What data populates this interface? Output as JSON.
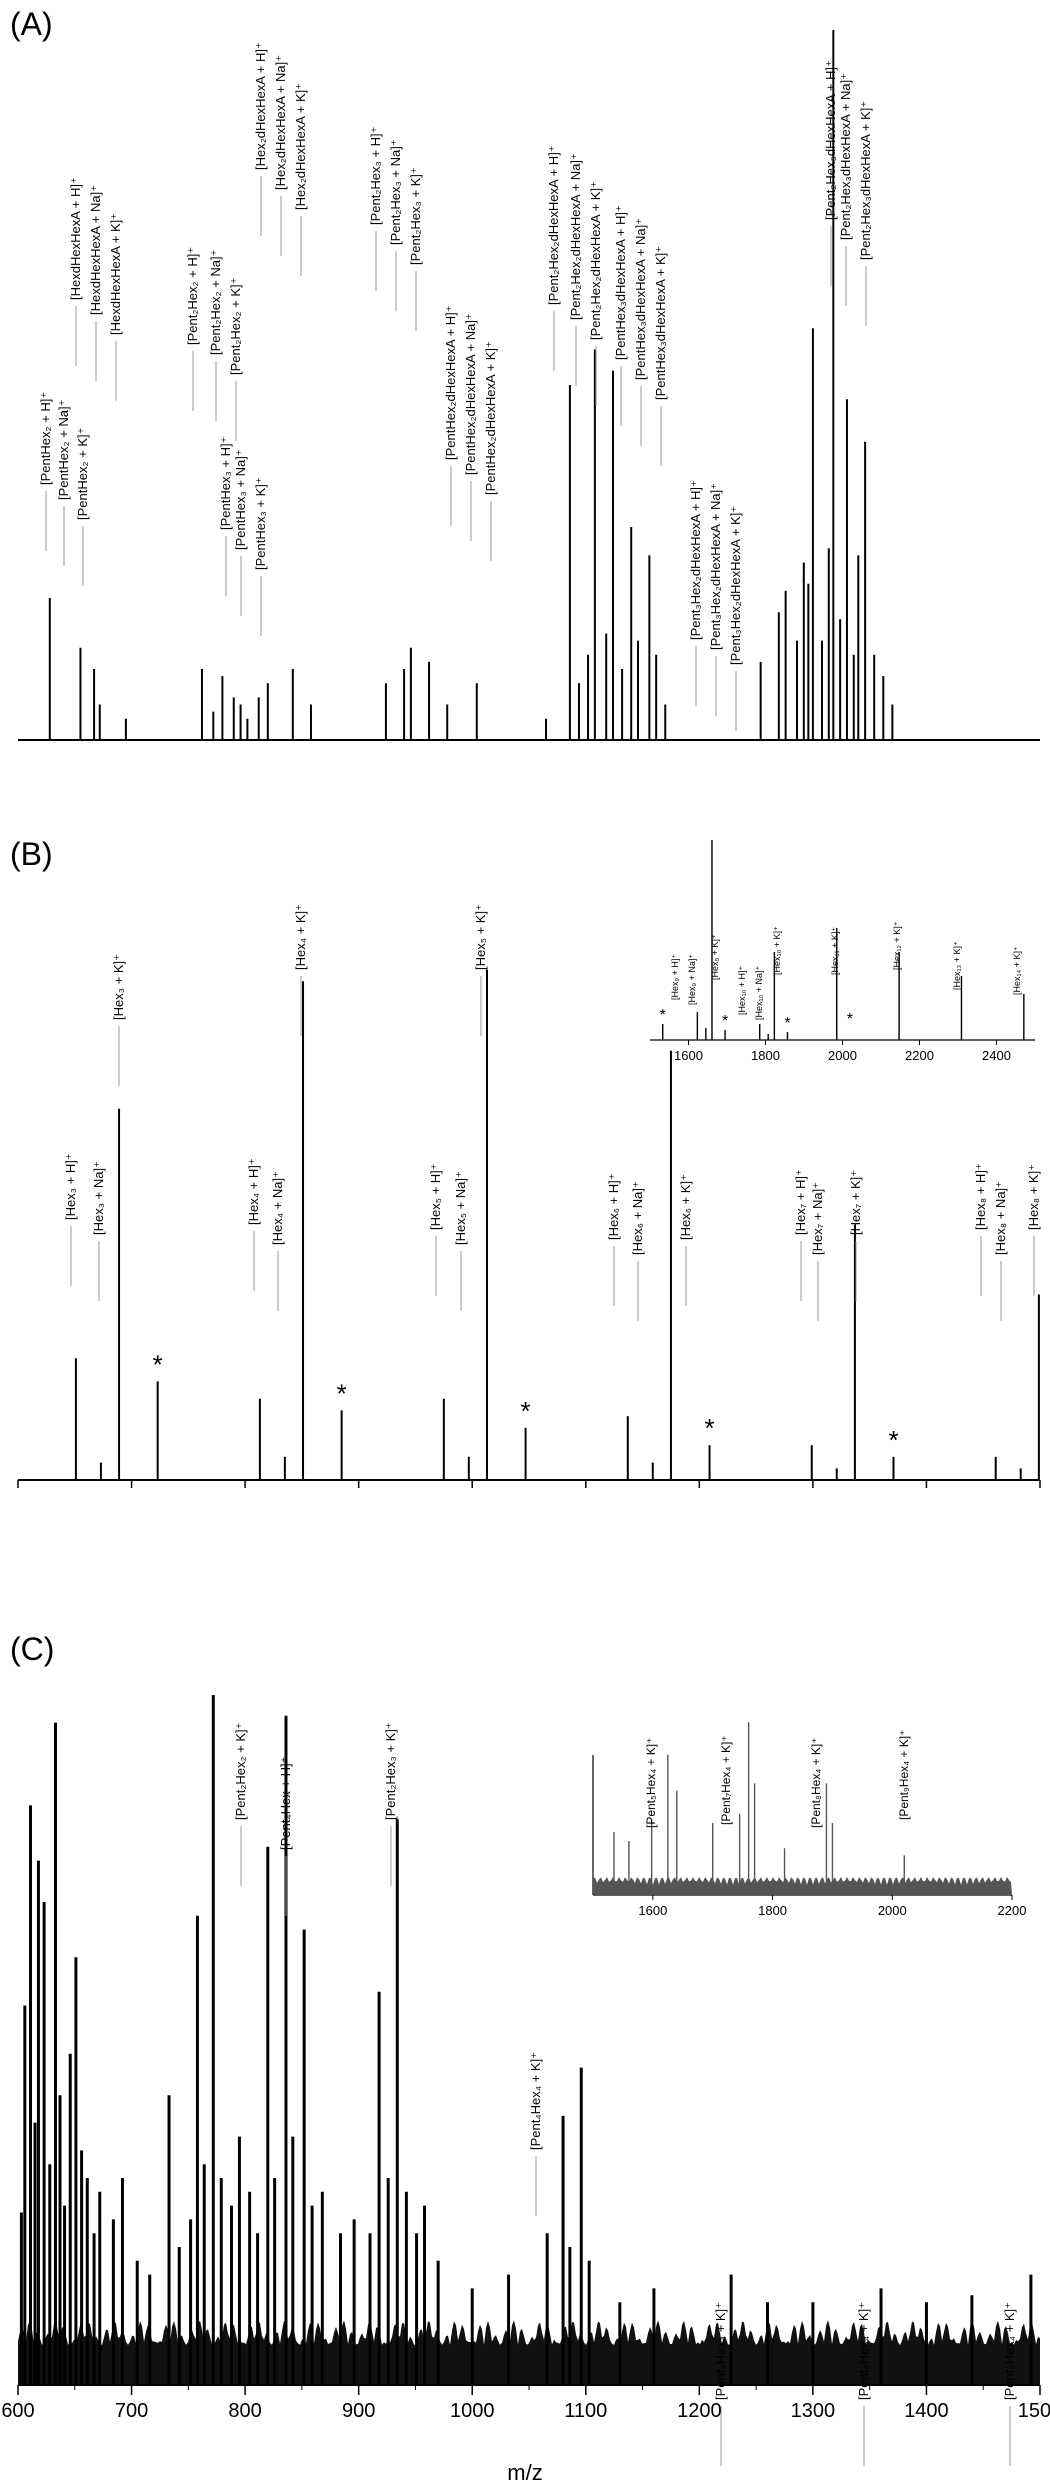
{
  "figure": {
    "xlabel": "m/z",
    "x_range": [
      600,
      1500
    ],
    "x_ticks": [
      600,
      700,
      800,
      900,
      1000,
      1100,
      1200,
      1300,
      1400,
      1500
    ]
  },
  "colors": {
    "spectrum": "#000000",
    "inset_C": "#555555",
    "leader": "#999999"
  },
  "chart_data": [
    {
      "panel": "(A)",
      "type": "bar",
      "xlim": [
        600,
        1500
      ],
      "peaks": [
        {
          "x": 628,
          "y": 0.2
        },
        {
          "x": 655,
          "y": 0.13
        },
        {
          "x": 667,
          "y": 0.1
        },
        {
          "x": 672,
          "y": 0.05
        },
        {
          "x": 695,
          "y": 0.03
        },
        {
          "x": 762,
          "y": 0.1
        },
        {
          "x": 772,
          "y": 0.04
        },
        {
          "x": 780,
          "y": 0.09
        },
        {
          "x": 790,
          "y": 0.06
        },
        {
          "x": 796,
          "y": 0.05
        },
        {
          "x": 802,
          "y": 0.03
        },
        {
          "x": 812,
          "y": 0.06
        },
        {
          "x": 820,
          "y": 0.08
        },
        {
          "x": 842,
          "y": 0.1
        },
        {
          "x": 858,
          "y": 0.05
        },
        {
          "x": 924,
          "y": 0.08
        },
        {
          "x": 940,
          "y": 0.1
        },
        {
          "x": 946,
          "y": 0.13
        },
        {
          "x": 962,
          "y": 0.11
        },
        {
          "x": 978,
          "y": 0.05
        },
        {
          "x": 1004,
          "y": 0.08
        },
        {
          "x": 1065,
          "y": 0.03
        },
        {
          "x": 1086,
          "y": 0.5
        },
        {
          "x": 1094,
          "y": 0.08
        },
        {
          "x": 1102,
          "y": 0.12
        },
        {
          "x": 1108,
          "y": 0.55
        },
        {
          "x": 1118,
          "y": 0.15
        },
        {
          "x": 1124,
          "y": 0.52
        },
        {
          "x": 1132,
          "y": 0.1
        },
        {
          "x": 1140,
          "y": 0.3
        },
        {
          "x": 1146,
          "y": 0.14
        },
        {
          "x": 1156,
          "y": 0.26
        },
        {
          "x": 1162,
          "y": 0.12
        },
        {
          "x": 1170,
          "y": 0.05
        },
        {
          "x": 1254,
          "y": 0.11
        },
        {
          "x": 1270,
          "y": 0.18
        },
        {
          "x": 1276,
          "y": 0.21
        },
        {
          "x": 1286,
          "y": 0.14
        },
        {
          "x": 1292,
          "y": 0.25
        },
        {
          "x": 1296,
          "y": 0.22
        },
        {
          "x": 1300,
          "y": 0.58
        },
        {
          "x": 1308,
          "y": 0.14
        },
        {
          "x": 1314,
          "y": 0.27
        },
        {
          "x": 1318,
          "y": 1.0
        },
        {
          "x": 1324,
          "y": 0.17
        },
        {
          "x": 1330,
          "y": 0.48
        },
        {
          "x": 1336,
          "y": 0.12
        },
        {
          "x": 1340,
          "y": 0.26
        },
        {
          "x": 1346,
          "y": 0.42
        },
        {
          "x": 1354,
          "y": 0.12
        },
        {
          "x": 1362,
          "y": 0.09
        },
        {
          "x": 1370,
          "y": 0.05
        }
      ],
      "labels": [
        "[PentHex₂ + H]⁺",
        "[PentHex₂ + Na]⁺",
        "[PentHex₂ + K]⁺",
        "[HexdHexHexA + H]⁺",
        "[HexdHexHexA + Na]⁺",
        "[HexdHexHexA + K]⁺",
        "[Pent₂Hex₂ + H]⁺",
        "[Pent₂Hex₂ + Na]⁺",
        "[Pent₂Hex₂ + K]⁺",
        "[PentHex₃ + H]⁺",
        "[PentHex₃ + Na]⁺",
        "[PentHex₃ + K]⁺",
        "[Hex₂dHexHexA + H]⁺",
        "[Hex₂dHexHexA + Na]⁺",
        "[Hex₂dHexHexA + K]⁺",
        "[Pent₂Hex₃ + H]⁺",
        "[Pent₂Hex₃ + Na]⁺",
        "[Pent₂Hex₃ + K]⁺",
        "[PentHex₂dHexHexA + H]⁺",
        "[PentHex₂dHexHexA + Na]⁺",
        "[PentHex₂dHexHexA + K]⁺",
        "[Pent₂Hex₂dHexHexA + H]⁺",
        "[Pent₂Hex₂dHexHexA + Na]⁺",
        "[Pent₂Hex₂dHexHexA + K]⁺",
        "[PentHex₃dHexHexA + H]⁺",
        "[PentHex₃dHexHexA + Na]⁺",
        "[PentHex₃dHexHexA + K]⁺",
        "[Pent₂Hex₃dHexHexA + H]⁺",
        "[Pent₂Hex₃dHexHexA + Na]⁺",
        "[Pent₂Hex₃dHexHexA + K]⁺",
        "[Pent₃Hex₂dHexHexA + H]⁺",
        "[Pent₃Hex₂dHexHexA + Na]⁺",
        "[Pent₃Hex₂dHexHexA + K]⁺"
      ]
    },
    {
      "panel": "(B)",
      "type": "bar",
      "xlim": [
        600,
        1500
      ],
      "peaks": [
        {
          "x": 651,
          "y": 0.21
        },
        {
          "x": 673,
          "y": 0.03
        },
        {
          "x": 689,
          "y": 0.64
        },
        {
          "x": 723,
          "y": 0.17
        },
        {
          "x": 813,
          "y": 0.14
        },
        {
          "x": 835,
          "y": 0.04
        },
        {
          "x": 851,
          "y": 0.86
        },
        {
          "x": 885,
          "y": 0.12
        },
        {
          "x": 975,
          "y": 0.14
        },
        {
          "x": 997,
          "y": 0.04
        },
        {
          "x": 1013,
          "y": 0.88
        },
        {
          "x": 1047,
          "y": 0.09
        },
        {
          "x": 1137,
          "y": 0.11
        },
        {
          "x": 1159,
          "y": 0.03
        },
        {
          "x": 1175,
          "y": 0.74
        },
        {
          "x": 1209,
          "y": 0.06
        },
        {
          "x": 1299,
          "y": 0.06
        },
        {
          "x": 1321,
          "y": 0.02
        },
        {
          "x": 1337,
          "y": 0.44
        },
        {
          "x": 1371,
          "y": 0.04
        },
        {
          "x": 1461,
          "y": 0.04
        },
        {
          "x": 1483,
          "y": 0.02
        },
        {
          "x": 1499,
          "y": 0.32
        }
      ],
      "stars_at": [
        723,
        885,
        1047,
        1209,
        1371
      ],
      "star_text": "*",
      "labels": [
        "[Hex₃ + H]⁺",
        "[Hex₃ + Na]⁺",
        "[Hex₃ + K]⁺",
        "[Hex₄ + H]⁺",
        "[Hex₄ + Na]⁺",
        "[Hex₄ + K]⁺",
        "[Hex₅ + H]⁺",
        "[Hex₅ + Na]⁺",
        "[Hex₅ + K]⁺",
        "[Hex₆ + H]⁺",
        "[Hex₆ + Na]⁺",
        "[Hex₆ + K]⁺",
        "[Hex₇ + H]⁺",
        "[Hex₇ + Na]⁺",
        "[Hex₇ + K]⁺",
        "[Hex₈ + H]⁺",
        "[Hex₈ + Na]⁺",
        "[Hex₈ + K]⁺"
      ],
      "inset": {
        "type": "bar",
        "xlim": [
          1500,
          2500
        ],
        "x_ticks": [
          1600,
          1800,
          2000,
          2200,
          2400
        ],
        "peaks": [
          {
            "x": 1533,
            "y": 0.08
          },
          {
            "x": 1623,
            "y": 0.14
          },
          {
            "x": 1645,
            "y": 0.06
          },
          {
            "x": 1661,
            "y": 1.0
          },
          {
            "x": 1695,
            "y": 0.05
          },
          {
            "x": 1785,
            "y": 0.08
          },
          {
            "x": 1807,
            "y": 0.03
          },
          {
            "x": 1823,
            "y": 0.44
          },
          {
            "x": 1857,
            "y": 0.04
          },
          {
            "x": 1985,
            "y": 0.56
          },
          {
            "x": 2147,
            "y": 0.44
          },
          {
            "x": 2309,
            "y": 0.32
          },
          {
            "x": 2471,
            "y": 0.23
          }
        ],
        "stars_at": [
          1533,
          1695,
          1857,
          2019
        ],
        "labels": [
          "[Hex₉ + H]⁺",
          "[Hex₉ + Na]⁺",
          "[Hex₉ + K]⁺",
          "[Hex₁₀ + H]⁺",
          "[Hex₁₀ + Na]⁺",
          "[Hex₁₀ + K]⁺",
          "[Hex₁₁ + K]⁺",
          "[Hex₁₂ + K]⁺",
          "[Hex₁₃ + K]⁺",
          "[Hex₁₄ + K]⁺"
        ]
      }
    },
    {
      "panel": "(C)",
      "type": "bar",
      "xlim": [
        600,
        1500
      ],
      "xlabel": "m/z",
      "peaks": [
        {
          "x": 603,
          "y": 0.25
        },
        {
          "x": 606,
          "y": 0.55
        },
        {
          "x": 611,
          "y": 0.84
        },
        {
          "x": 615,
          "y": 0.38
        },
        {
          "x": 618,
          "y": 0.76
        },
        {
          "x": 623,
          "y": 0.7
        },
        {
          "x": 628,
          "y": 0.32
        },
        {
          "x": 633,
          "y": 0.96
        },
        {
          "x": 637,
          "y": 0.42
        },
        {
          "x": 641,
          "y": 0.26
        },
        {
          "x": 646,
          "y": 0.48
        },
        {
          "x": 651,
          "y": 0.62
        },
        {
          "x": 656,
          "y": 0.34
        },
        {
          "x": 661,
          "y": 0.3
        },
        {
          "x": 667,
          "y": 0.22
        },
        {
          "x": 672,
          "y": 0.28
        },
        {
          "x": 684,
          "y": 0.24
        },
        {
          "x": 692,
          "y": 0.3
        },
        {
          "x": 705,
          "y": 0.18
        },
        {
          "x": 716,
          "y": 0.16
        },
        {
          "x": 733,
          "y": 0.42
        },
        {
          "x": 742,
          "y": 0.2
        },
        {
          "x": 752,
          "y": 0.24
        },
        {
          "x": 758,
          "y": 0.68
        },
        {
          "x": 764,
          "y": 0.32
        },
        {
          "x": 772,
          "y": 1.0
        },
        {
          "x": 779,
          "y": 0.3
        },
        {
          "x": 788,
          "y": 0.26
        },
        {
          "x": 795,
          "y": 0.36
        },
        {
          "x": 804,
          "y": 0.28
        },
        {
          "x": 811,
          "y": 0.22
        },
        {
          "x": 820,
          "y": 0.78
        },
        {
          "x": 826,
          "y": 0.3
        },
        {
          "x": 836,
          "y": 0.97
        },
        {
          "x": 842,
          "y": 0.36
        },
        {
          "x": 852,
          "y": 0.66
        },
        {
          "x": 859,
          "y": 0.26
        },
        {
          "x": 868,
          "y": 0.28
        },
        {
          "x": 884,
          "y": 0.22
        },
        {
          "x": 896,
          "y": 0.24
        },
        {
          "x": 910,
          "y": 0.22
        },
        {
          "x": 918,
          "y": 0.57
        },
        {
          "x": 926,
          "y": 0.3
        },
        {
          "x": 934,
          "y": 0.82
        },
        {
          "x": 942,
          "y": 0.28
        },
        {
          "x": 951,
          "y": 0.22
        },
        {
          "x": 958,
          "y": 0.26
        },
        {
          "x": 970,
          "y": 0.18
        },
        {
          "x": 1000,
          "y": 0.14
        },
        {
          "x": 1032,
          "y": 0.16
        },
        {
          "x": 1066,
          "y": 0.22
        },
        {
          "x": 1080,
          "y": 0.39
        },
        {
          "x": 1086,
          "y": 0.2
        },
        {
          "x": 1096,
          "y": 0.46
        },
        {
          "x": 1103,
          "y": 0.18
        },
        {
          "x": 1130,
          "y": 0.12
        },
        {
          "x": 1160,
          "y": 0.14
        },
        {
          "x": 1228,
          "y": 0.16
        },
        {
          "x": 1260,
          "y": 0.12
        },
        {
          "x": 1300,
          "y": 0.12
        },
        {
          "x": 1360,
          "y": 0.14
        },
        {
          "x": 1400,
          "y": 0.12
        },
        {
          "x": 1440,
          "y": 0.13
        },
        {
          "x": 1492,
          "y": 0.16
        }
      ],
      "labels": [
        "[Pent₂Hex₂ + K]⁺",
        "[Pent₄Hex + H]⁺",
        "[Pent₂Hex₃ + K]⁺",
        "[Pent₄Hex₄ + K]⁺",
        "[Pent₃Hex₄ + K]⁺",
        "[Pent₄Hex₄ + K]⁺",
        "[Pent₅Hex₄ + K]⁺"
      ],
      "inset": {
        "type": "line",
        "xlim": [
          1500,
          2200
        ],
        "x_ticks": [
          1600,
          1800,
          2000,
          2200
        ],
        "peaks": [
          {
            "x": 1535,
            "y": 0.35
          },
          {
            "x": 1560,
            "y": 0.3
          },
          {
            "x": 1598,
            "y": 0.42
          },
          {
            "x": 1625,
            "y": 0.78
          },
          {
            "x": 1640,
            "y": 0.58
          },
          {
            "x": 1700,
            "y": 0.4
          },
          {
            "x": 1745,
            "y": 0.45
          },
          {
            "x": 1760,
            "y": 0.96
          },
          {
            "x": 1770,
            "y": 0.62
          },
          {
            "x": 1820,
            "y": 0.26
          },
          {
            "x": 1890,
            "y": 0.62
          },
          {
            "x": 1900,
            "y": 0.4
          },
          {
            "x": 2020,
            "y": 0.22
          }
        ],
        "labels": [
          "[Pent₅Hex₄ + K]⁺",
          "[Pent₇Hex₄ + K]⁺",
          "[Pent₈Hex₄ + K]⁺",
          "[Pent₉Hex₄ + K]⁺"
        ]
      }
    }
  ]
}
